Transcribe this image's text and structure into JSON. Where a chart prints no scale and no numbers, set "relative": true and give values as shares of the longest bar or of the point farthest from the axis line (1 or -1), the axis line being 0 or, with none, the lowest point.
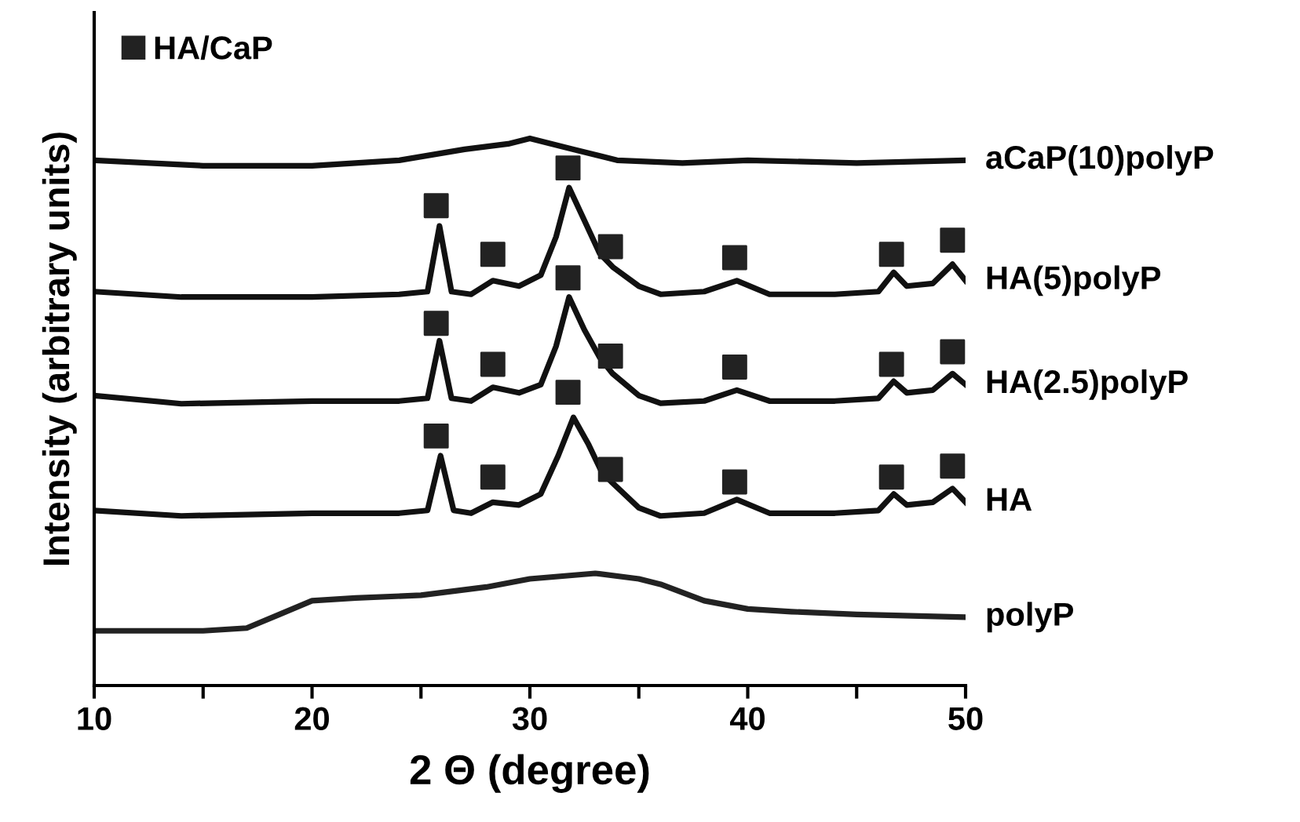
{
  "chart_data": {
    "type": "line",
    "relative": true,
    "xlabel": "2 Θ (degree)",
    "ylabel": "Intensity (arbitrary units)",
    "xlim": [
      10,
      50
    ],
    "xticks": [
      10,
      {
        "value": 15,
        "label": null
      },
      20,
      {
        "value": 25,
        "label": null
      },
      30,
      {
        "value": 35,
        "label": null
      },
      40,
      {
        "value": 45,
        "label": null
      },
      50
    ],
    "tick_labels": "x",
    "legend": "top left",
    "series": [
      {
        "name": "aCaP(10)polyP",
        "color": "#111111",
        "x": [
          10,
          15,
          20,
          24,
          27,
          29,
          30,
          31,
          32,
          34,
          37,
          40,
          45,
          50
        ],
        "values": [
          0.96,
          0.95,
          0.95,
          0.96,
          0.98,
          0.99,
          1.0,
          0.99,
          0.98,
          0.96,
          0.955,
          0.96,
          0.955,
          0.96
        ]
      },
      {
        "name": "HA(5)polyP",
        "color": "#111111",
        "x": [
          10,
          14,
          20,
          24,
          25.3,
          25.85,
          26.4,
          27.3,
          28.3,
          29.5,
          30.5,
          31.2,
          31.8,
          32.5,
          33.2,
          33.8,
          35,
          36,
          38,
          39.5,
          41,
          44,
          46,
          46.7,
          47.3,
          48.5,
          49.4,
          50
        ],
        "values": [
          0.72,
          0.71,
          0.71,
          0.715,
          0.72,
          0.84,
          0.72,
          0.715,
          0.74,
          0.73,
          0.75,
          0.82,
          0.91,
          0.85,
          0.79,
          0.765,
          0.73,
          0.715,
          0.72,
          0.74,
          0.715,
          0.715,
          0.72,
          0.755,
          0.73,
          0.735,
          0.77,
          0.74
        ]
      },
      {
        "name": "HA(2.5)polyP",
        "color": "#111111",
        "x": [
          10,
          14,
          20,
          24,
          25.3,
          25.85,
          26.4,
          27.3,
          28.3,
          29.5,
          30.5,
          31.2,
          31.8,
          32.5,
          33.2,
          33.8,
          35,
          36,
          38,
          39.5,
          41,
          44,
          46,
          46.7,
          47.3,
          48.5,
          49.4,
          50
        ],
        "values": [
          0.53,
          0.515,
          0.52,
          0.52,
          0.525,
          0.63,
          0.525,
          0.52,
          0.545,
          0.535,
          0.55,
          0.62,
          0.71,
          0.65,
          0.6,
          0.57,
          0.53,
          0.516,
          0.52,
          0.54,
          0.52,
          0.52,
          0.525,
          0.556,
          0.535,
          0.54,
          0.57,
          0.55
        ]
      },
      {
        "name": "HA",
        "color": "#111111",
        "x": [
          10,
          14,
          20,
          24,
          25.3,
          25.9,
          26.5,
          27.3,
          28.3,
          29.5,
          30.5,
          31.3,
          32,
          32.7,
          33.3,
          33.8,
          35,
          36,
          38,
          39.5,
          41,
          44,
          46,
          46.7,
          47.3,
          48.5,
          49.4,
          50
        ],
        "values": [
          0.32,
          0.31,
          0.315,
          0.315,
          0.32,
          0.42,
          0.32,
          0.315,
          0.335,
          0.33,
          0.35,
          0.42,
          0.49,
          0.44,
          0.39,
          0.37,
          0.325,
          0.31,
          0.315,
          0.34,
          0.315,
          0.315,
          0.32,
          0.35,
          0.33,
          0.335,
          0.36,
          0.335
        ]
      },
      {
        "name": "polyP",
        "color": "#222222",
        "x": [
          10,
          15,
          17,
          18.5,
          20,
          22,
          25,
          28,
          30,
          33,
          35,
          36,
          38,
          40,
          42,
          45,
          50
        ],
        "values": [
          0.1,
          0.1,
          0.105,
          0.13,
          0.155,
          0.16,
          0.165,
          0.18,
          0.195,
          0.205,
          0.195,
          0.185,
          0.155,
          0.14,
          0.135,
          0.13,
          0.125
        ]
      },
      {
        "name": "HA/CaP",
        "type": "scatter",
        "marker": "square",
        "color": "#222222",
        "x": [
          25.7,
          28.3,
          31.75,
          33.7,
          39.4,
          46.6,
          49.4,
          25.7,
          28.3,
          31.75,
          33.7,
          39.4,
          46.6,
          49.4,
          25.7,
          28.3,
          31.75,
          33.7,
          39.4,
          46.6,
          49.4
        ],
        "values": [
          0.877,
          0.788,
          0.946,
          0.802,
          0.782,
          0.788,
          0.814,
          0.662,
          0.587,
          0.745,
          0.602,
          0.582,
          0.587,
          0.61,
          0.456,
          0.381,
          0.536,
          0.395,
          0.372,
          0.381,
          0.401
        ]
      }
    ]
  }
}
